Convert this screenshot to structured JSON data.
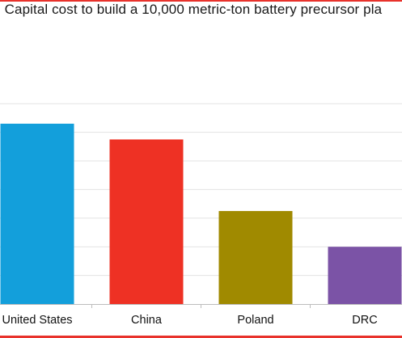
{
  "title": ": Capital cost to build a 10,000 metric-ton battery precursor pla",
  "colors": {
    "accent": "#e8322b",
    "grid": "#e3e3e3",
    "axis": "#bdbdbd"
  },
  "chart_data": {
    "type": "bar",
    "title": ": Capital cost to build a 10,000 metric-ton battery precursor pla",
    "xlabel": "",
    "ylabel": "",
    "categories": [
      "United States",
      "China",
      "Poland",
      "DRC"
    ],
    "values": [
      126,
      115,
      65,
      40
    ],
    "bar_colors": [
      "#139fdb",
      "#ee3124",
      "#a08a00",
      "#7b53a6"
    ],
    "ylim": [
      0,
      140
    ],
    "grid": true,
    "legend": "none"
  }
}
